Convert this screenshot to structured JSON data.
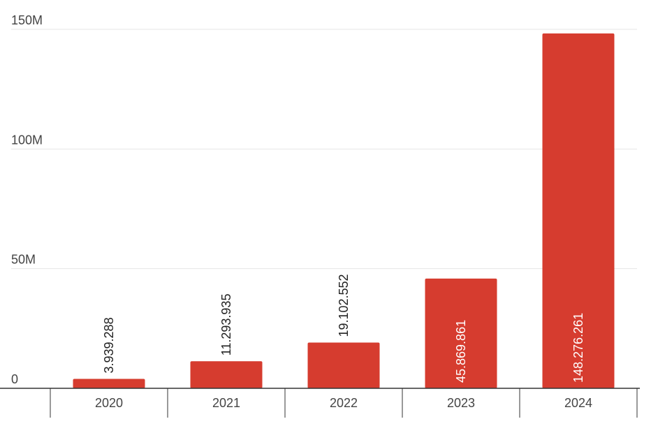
{
  "chart_data": {
    "type": "bar",
    "title": "",
    "xlabel": "",
    "ylabel": "",
    "categories": [
      "2020",
      "2021",
      "2022",
      "2023",
      "2024"
    ],
    "values": [
      3939288,
      11293935,
      19102552,
      45869861,
      148276261
    ],
    "data_labels": [
      "3.939.288",
      "11.293.935",
      "19.102.552",
      "45.869.861",
      "148.276.261"
    ],
    "ylim": [
      0,
      150000000
    ],
    "yticks": [
      {
        "value": 0,
        "label": "0"
      },
      {
        "value": 50000000,
        "label": "50M"
      },
      {
        "value": 100000000,
        "label": "100M"
      },
      {
        "value": 150000000,
        "label": "150M"
      }
    ],
    "grid": true,
    "legend": "none",
    "bar_color": "#d63c2f",
    "gridline_color": "#e6e6e6",
    "axis_color": "#333333",
    "label_outside_color": "#222222",
    "label_inside_color": "#ffffff"
  }
}
